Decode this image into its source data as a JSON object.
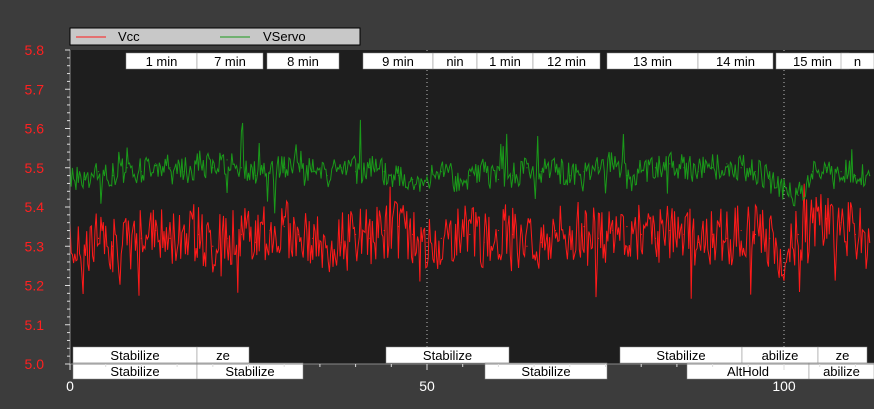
{
  "chart_data": {
    "type": "line",
    "title": "",
    "xlabel": "",
    "ylabel": "",
    "xlim": [
      0,
      112
    ],
    "ylim": [
      5.0,
      5.8
    ],
    "x_ticks": [
      0,
      50,
      100
    ],
    "y_ticks": [
      5.0,
      5.1,
      5.2,
      5.3,
      5.4,
      5.5,
      5.6,
      5.7,
      5.8
    ],
    "x_tick_labels": [
      "0",
      "50",
      "100"
    ],
    "y_tick_labels": [
      "5.0",
      "5.1",
      "5.2",
      "5.3",
      "5.4",
      "5.5",
      "5.6",
      "5.7",
      "5.8"
    ],
    "grid": false,
    "legend_position": "top-left",
    "series": [
      {
        "name": "Vcc",
        "color": "#ff1a1a",
        "x": [
          0,
          2,
          4,
          6,
          8,
          10,
          12,
          14,
          16,
          18,
          20,
          22,
          24,
          26,
          28,
          30,
          32,
          34,
          36,
          38,
          40,
          42,
          44,
          46,
          48,
          50,
          52,
          54,
          56,
          58,
          60,
          62,
          64,
          66,
          68,
          70,
          72,
          74,
          76,
          78,
          80,
          82,
          84,
          86,
          88,
          90,
          92,
          94,
          96,
          98,
          100,
          102,
          104,
          106,
          108,
          110,
          112
        ],
        "values": [
          5.3,
          5.29,
          5.32,
          5.3,
          5.31,
          5.32,
          5.34,
          5.32,
          5.35,
          5.33,
          5.3,
          5.32,
          5.33,
          5.31,
          5.34,
          5.35,
          5.33,
          5.32,
          5.3,
          5.31,
          5.33,
          5.32,
          5.34,
          5.35,
          5.33,
          5.31,
          5.32,
          5.34,
          5.33,
          5.31,
          5.34,
          5.33,
          5.3,
          5.31,
          5.34,
          5.33,
          5.35,
          5.32,
          5.34,
          5.35,
          5.33,
          5.32,
          5.34,
          5.33,
          5.31,
          5.33,
          5.32,
          5.34,
          5.33,
          5.32,
          5.24,
          5.33,
          5.36,
          5.37,
          5.36,
          5.33,
          5.31
        ]
      },
      {
        "name": "VServo",
        "color": "#1a9a1a",
        "x": [
          0,
          2,
          4,
          6,
          8,
          10,
          12,
          14,
          16,
          18,
          20,
          22,
          24,
          26,
          28,
          30,
          32,
          34,
          36,
          38,
          40,
          42,
          44,
          46,
          48,
          50,
          52,
          54,
          56,
          58,
          60,
          62,
          64,
          66,
          68,
          70,
          72,
          74,
          76,
          78,
          80,
          82,
          84,
          86,
          88,
          90,
          92,
          94,
          96,
          98,
          100,
          102,
          104,
          106,
          108,
          110,
          112
        ],
        "values": [
          5.48,
          5.47,
          5.49,
          5.48,
          5.5,
          5.49,
          5.51,
          5.5,
          5.49,
          5.51,
          5.5,
          5.52,
          5.5,
          5.48,
          5.49,
          5.5,
          5.51,
          5.49,
          5.48,
          5.5,
          5.49,
          5.5,
          5.49,
          5.48,
          5.47,
          5.48,
          5.49,
          5.47,
          5.48,
          5.49,
          5.47,
          5.48,
          5.5,
          5.49,
          5.5,
          5.48,
          5.49,
          5.5,
          5.51,
          5.48,
          5.49,
          5.5,
          5.51,
          5.5,
          5.49,
          5.5,
          5.51,
          5.5,
          5.49,
          5.47,
          5.44,
          5.43,
          5.49,
          5.5,
          5.49,
          5.48,
          5.48
        ]
      }
    ],
    "time_labels": [
      "1 min",
      "7 min",
      "8 min",
      "9 min",
      "nin",
      "1 min",
      "12 min",
      "13 min",
      "14 min",
      "15 min",
      "n"
    ],
    "mode_labels_top": [
      "Stabilize",
      "ze",
      "Stabilize",
      "Stabilize",
      "abilize",
      "ze"
    ],
    "mode_labels_bottom": [
      "Stabilize",
      "Stabilize",
      "Stabilize",
      "AltHold",
      "abilize"
    ],
    "vlines_x": [
      50,
      100
    ]
  }
}
